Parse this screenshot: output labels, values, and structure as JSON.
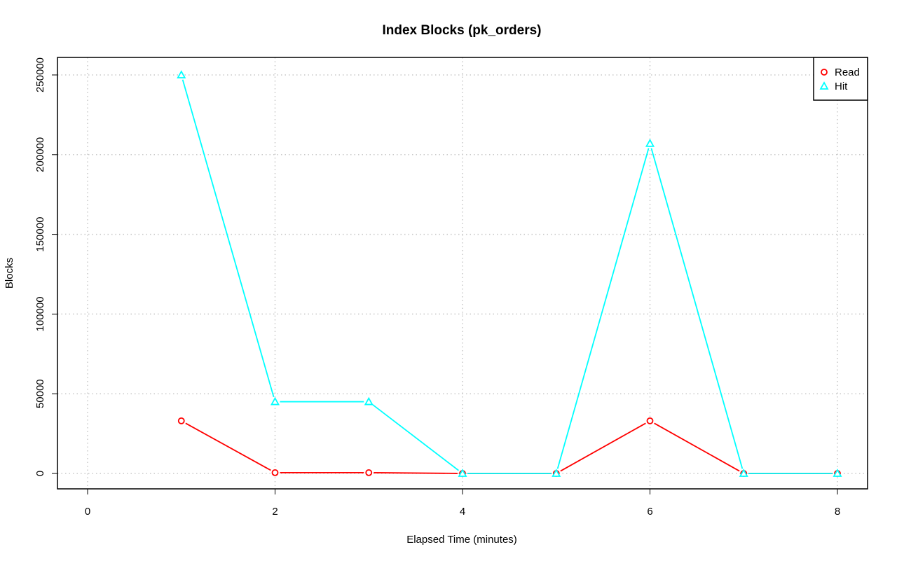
{
  "chart_data": {
    "type": "line",
    "title": "Index Blocks (pk_orders)",
    "xlabel": "Elapsed Time (minutes)",
    "ylabel": "Blocks",
    "xlim": [
      0,
      8
    ],
    "ylim": [
      0,
      250000
    ],
    "xticks": [
      0,
      2,
      4,
      6,
      8
    ],
    "yticks": [
      0,
      50000,
      100000,
      150000,
      200000,
      250000
    ],
    "x_tick_labels": [
      "0",
      "2",
      "4",
      "6",
      "8"
    ],
    "y_tick_labels": [
      "0",
      "50000",
      "100000",
      "150000",
      "200000",
      "250000"
    ],
    "grid": true,
    "legend_position": "top-right",
    "series": [
      {
        "name": "Read",
        "color": "#ff0000",
        "marker": "circle",
        "x": [
          1,
          2,
          3,
          4,
          5,
          6,
          7,
          8
        ],
        "y": [
          33000,
          500,
          500,
          0,
          0,
          33000,
          0,
          0
        ]
      },
      {
        "name": "Hit",
        "color": "#00ffff",
        "marker": "triangle",
        "x": [
          1,
          2,
          3,
          4,
          5,
          6,
          7,
          8
        ],
        "y": [
          250000,
          45000,
          45000,
          0,
          0,
          207000,
          0,
          0
        ]
      }
    ]
  }
}
